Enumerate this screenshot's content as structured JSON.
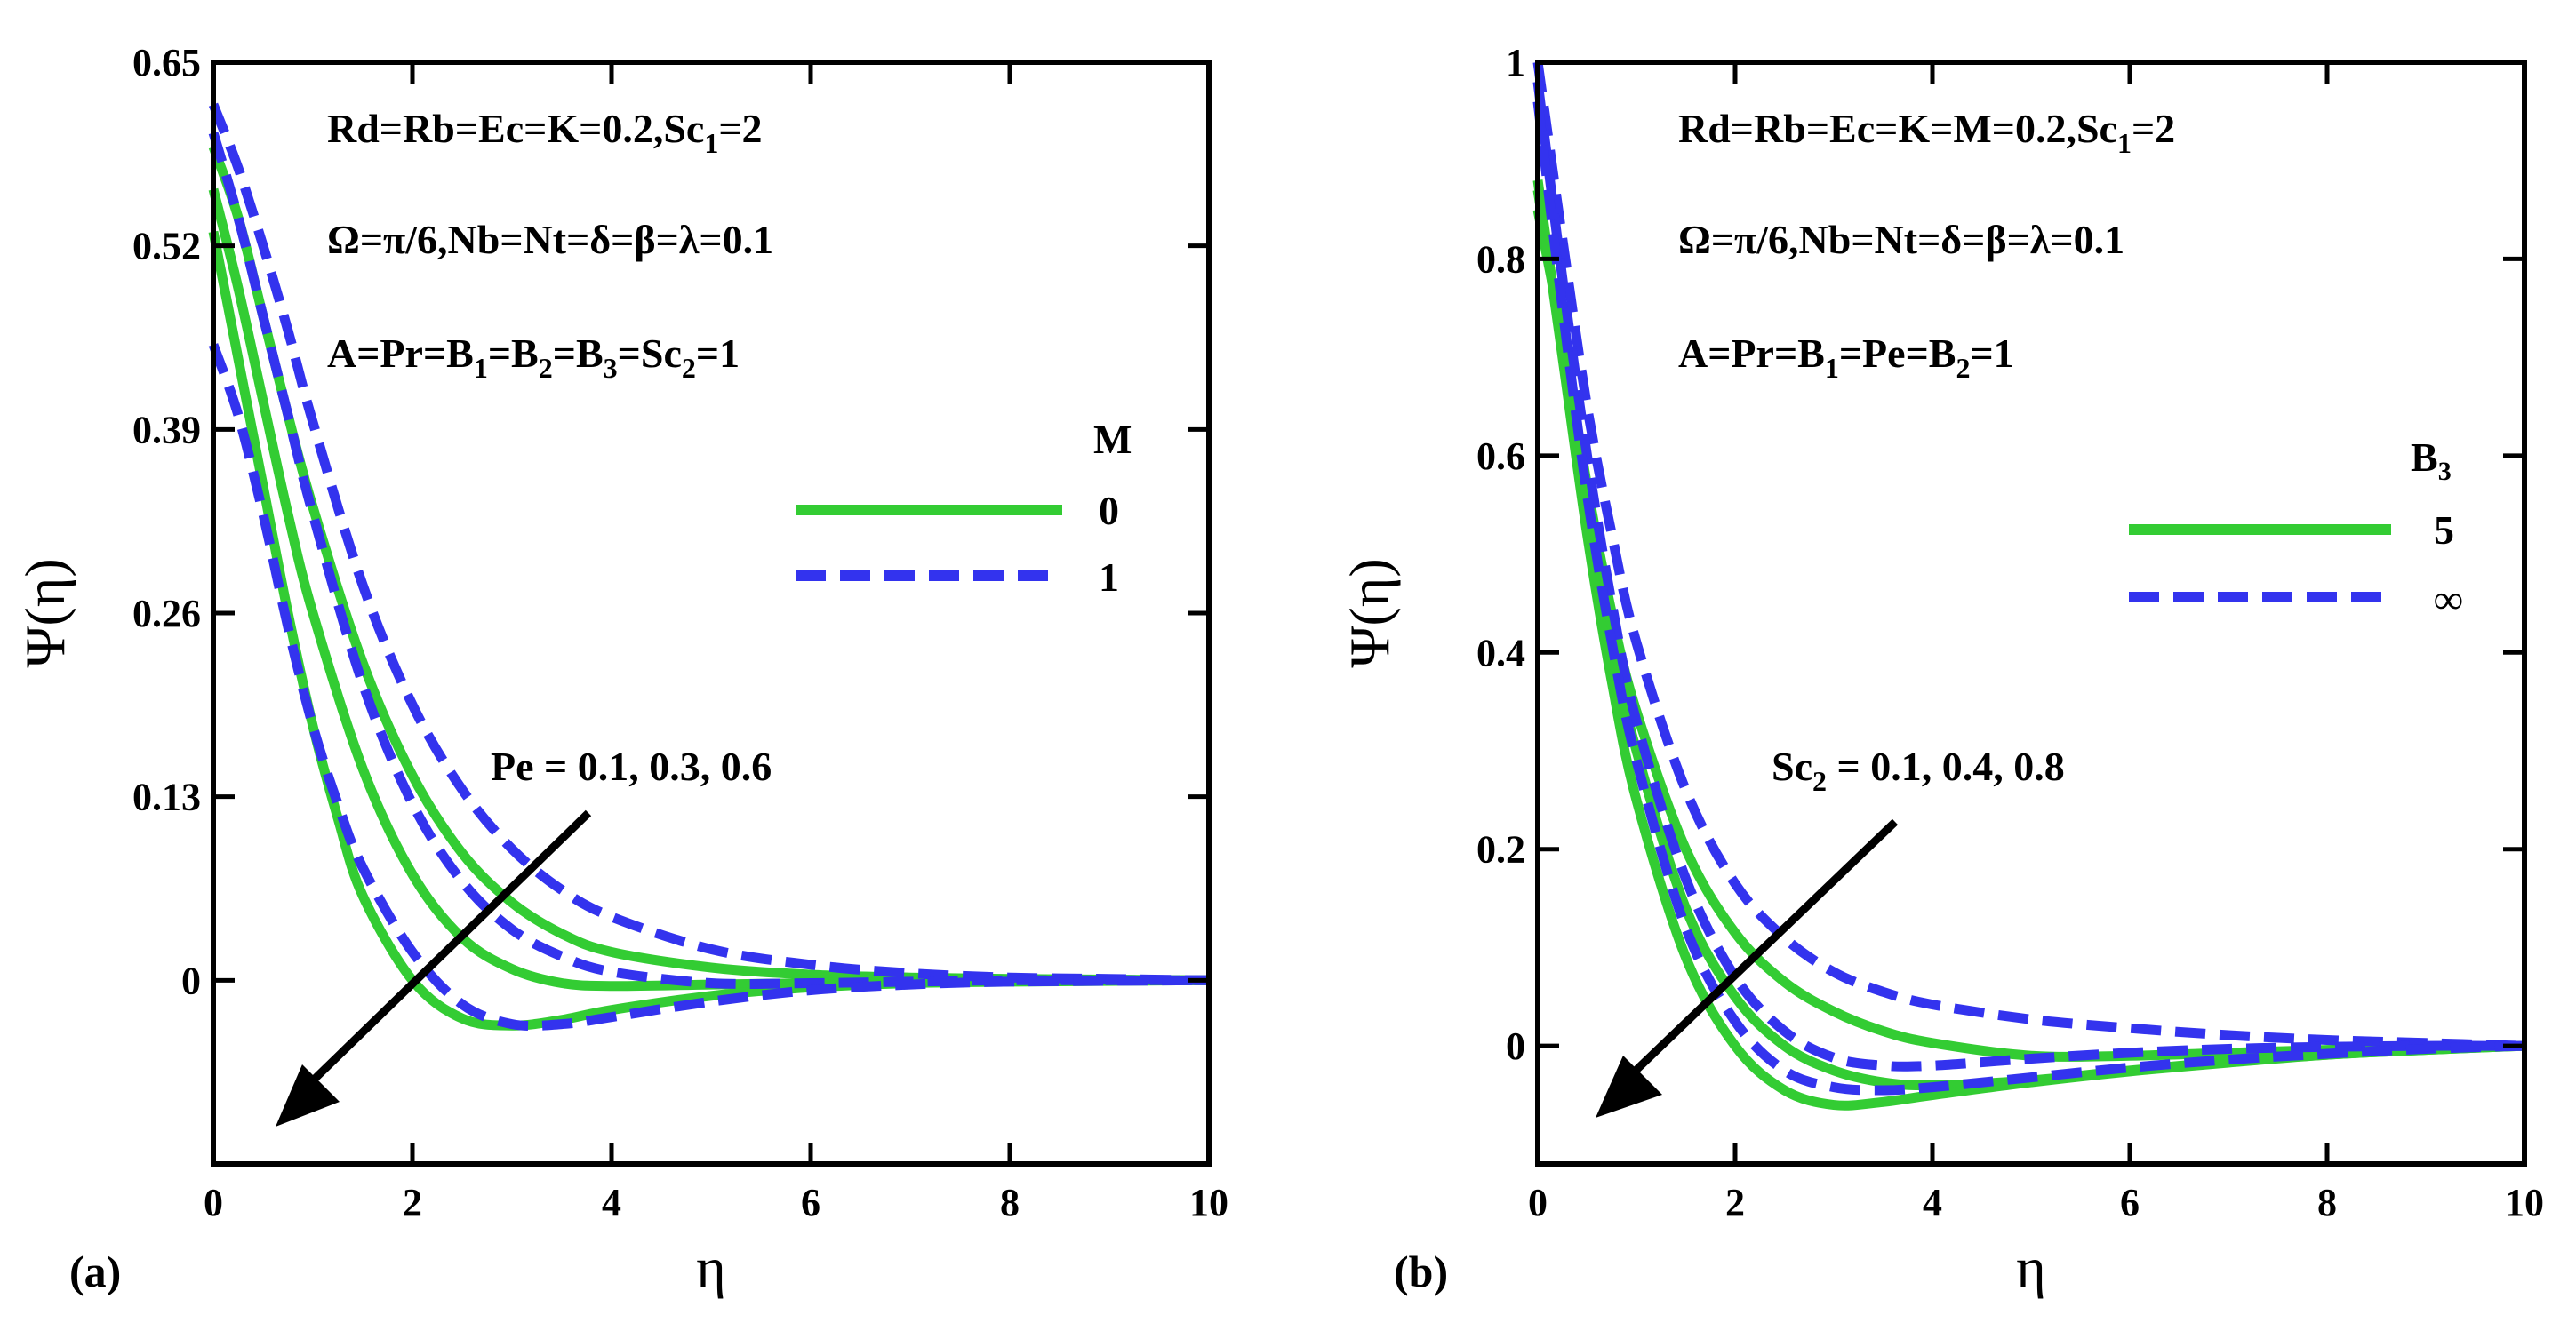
{
  "chart_data": [
    {
      "type": "line",
      "panel_label": "(a)",
      "xlabel": "η",
      "ylabel": "Ψ(η)",
      "xlim": [
        0,
        10
      ],
      "ylim": [
        -0.13,
        0.65
      ],
      "xticks": [
        "0",
        "2",
        "4",
        "6",
        "8",
        "10"
      ],
      "xtick_values": [
        0,
        2,
        4,
        6,
        8,
        10
      ],
      "yticks": [
        "0.65",
        "0.52",
        "0.39",
        "0.26",
        "0.13",
        "0"
      ],
      "ytick_values": [
        0.65,
        0.52,
        0.39,
        0.26,
        0.13,
        0
      ],
      "annotations": [
        {
          "text": "Rd=Rb=Ec=K=0.2,Sc",
          "sub": "1",
          "tail": "=2"
        },
        {
          "text": "Ω=π/6,Nb=Nt=δ=β=λ=0.1"
        },
        {
          "text": "A=Pr=B",
          "parts": [
            "1",
            "=B",
            "2",
            "=B",
            "3",
            "=Sc",
            "2",
            "=1"
          ]
        }
      ],
      "arrow_label": "Pe = 0.1, 0.3, 0.6",
      "legend": {
        "title": "M",
        "title_sub": "",
        "position": "right",
        "entries": [
          "0",
          "1"
        ]
      },
      "series": [
        {
          "name": "M=0, Pe=0.1",
          "style": "solid",
          "color": "#33cc33",
          "x": [
            0,
            0.25,
            0.5,
            0.75,
            1,
            1.5,
            2,
            2.5,
            3,
            3.5,
            4,
            5,
            6,
            7,
            8,
            9,
            10
          ],
          "y": [
            0.59,
            0.54,
            0.47,
            0.4,
            0.335,
            0.225,
            0.145,
            0.09,
            0.055,
            0.033,
            0.02,
            0.009,
            0.004,
            0.002,
            0.001,
            0.0005,
            0
          ]
        },
        {
          "name": "M=0, Pe=0.3",
          "style": "solid",
          "color": "#33cc33",
          "x": [
            0,
            0.25,
            0.5,
            0.75,
            1,
            1.5,
            2,
            2.5,
            3,
            3.5,
            4,
            5,
            6,
            7,
            8,
            9,
            10
          ],
          "y": [
            0.56,
            0.49,
            0.41,
            0.33,
            0.26,
            0.15,
            0.075,
            0.03,
            0.008,
            -0.002,
            -0.004,
            -0.003,
            -0.002,
            -0.001,
            0,
            0,
            0
          ]
        },
        {
          "name": "M=0, Pe=0.6",
          "style": "solid",
          "color": "#33cc33",
          "x": [
            0,
            0.25,
            0.5,
            0.75,
            1,
            1.25,
            1.5,
            2,
            2.5,
            3,
            3.5,
            4,
            5,
            6,
            7,
            8,
            10
          ],
          "y": [
            0.53,
            0.44,
            0.35,
            0.26,
            0.18,
            0.115,
            0.06,
            0.0,
            -0.027,
            -0.032,
            -0.028,
            -0.021,
            -0.011,
            -0.005,
            -0.002,
            -0.001,
            0
          ]
        },
        {
          "name": "M=1, Pe=0.1",
          "style": "dashed",
          "color": "#3333ee",
          "x": [
            0,
            0.25,
            0.5,
            0.75,
            1,
            1.5,
            2,
            2.5,
            3,
            3.5,
            4,
            5,
            6,
            7,
            8,
            9,
            10
          ],
          "y": [
            0.62,
            0.575,
            0.52,
            0.46,
            0.395,
            0.28,
            0.195,
            0.135,
            0.093,
            0.064,
            0.045,
            0.022,
            0.011,
            0.005,
            0.002,
            0.001,
            0
          ]
        },
        {
          "name": "M=1, Pe=0.3",
          "style": "dashed",
          "color": "#3333ee",
          "x": [
            0,
            0.25,
            0.5,
            0.75,
            1,
            1.5,
            2,
            2.5,
            3,
            3.5,
            4,
            5,
            6,
            7,
            8,
            9,
            10
          ],
          "y": [
            0.6,
            0.54,
            0.47,
            0.4,
            0.33,
            0.21,
            0.125,
            0.07,
            0.036,
            0.017,
            0.006,
            -0.002,
            -0.002,
            -0.001,
            0,
            0,
            0
          ]
        },
        {
          "name": "M=1, Pe=0.6",
          "style": "dashed",
          "color": "#3333ee",
          "x": [
            0,
            0.25,
            0.5,
            0.75,
            1,
            1.25,
            1.5,
            2,
            2.5,
            3,
            3.5,
            4,
            5,
            6,
            7,
            8,
            10
          ],
          "y": [
            0.45,
            0.4,
            0.33,
            0.25,
            0.18,
            0.125,
            0.08,
            0.02,
            -0.017,
            -0.031,
            -0.031,
            -0.026,
            -0.015,
            -0.007,
            -0.003,
            -0.001,
            0
          ]
        }
      ]
    },
    {
      "type": "line",
      "panel_label": "(b)",
      "xlabel": "η",
      "ylabel": "Ψ(η)",
      "xlim": [
        0,
        10
      ],
      "ylim": [
        -0.12,
        1.0
      ],
      "xticks": [
        "0",
        "2",
        "4",
        "6",
        "8",
        "10"
      ],
      "xtick_values": [
        0,
        2,
        4,
        6,
        8,
        10
      ],
      "yticks": [
        "1",
        "0.8",
        "0.6",
        "0.4",
        "0.2",
        "0"
      ],
      "ytick_values": [
        1,
        0.8,
        0.6,
        0.4,
        0.2,
        0
      ],
      "annotations": [
        {
          "text": "Rd=Rb=Ec=K=M=0.2,Sc",
          "sub": "1",
          "tail": "=2"
        },
        {
          "text": "Ω=π/6,Nb=Nt=δ=β=λ=0.1"
        },
        {
          "text": "A=Pr=B",
          "parts": [
            "1",
            "=Pe=B",
            "2",
            "=1"
          ]
        }
      ],
      "arrow_label": "Sc = 0.1, 0.4, 0.8",
      "arrow_label_parts": [
        "Sc",
        "2",
        " = 0.1, 0.4, 0.8"
      ],
      "legend": {
        "title": "B",
        "title_sub": "3",
        "position": "right",
        "entries": [
          "5",
          "∞"
        ]
      },
      "series": [
        {
          "name": "B3=5, Sc2=0.1",
          "style": "solid",
          "color": "#33cc33",
          "x": [
            0,
            0.25,
            0.5,
            0.75,
            1,
            1.5,
            2,
            2.5,
            3,
            3.5,
            4,
            5,
            6,
            7,
            8,
            9,
            10
          ],
          "y": [
            0.85,
            0.72,
            0.57,
            0.44,
            0.34,
            0.2,
            0.115,
            0.065,
            0.035,
            0.015,
            0.003,
            -0.01,
            -0.01,
            -0.007,
            -0.004,
            -0.002,
            0
          ]
        },
        {
          "name": "B3=5, Sc2=0.4",
          "style": "solid",
          "color": "#33cc33",
          "x": [
            0,
            0.25,
            0.5,
            0.75,
            1,
            1.5,
            2,
            2.5,
            3,
            3.5,
            4,
            5,
            6,
            7,
            8,
            9,
            10
          ],
          "y": [
            0.87,
            0.71,
            0.55,
            0.41,
            0.3,
            0.14,
            0.05,
            0.0,
            -0.025,
            -0.037,
            -0.04,
            -0.035,
            -0.025,
            -0.016,
            -0.009,
            -0.004,
            0
          ]
        },
        {
          "name": "B3=5, Sc2=0.8",
          "style": "solid",
          "color": "#33cc33",
          "x": [
            0,
            0.25,
            0.5,
            0.75,
            1,
            1.5,
            2,
            2.5,
            3,
            3.5,
            4,
            5,
            6,
            7,
            8,
            9,
            10
          ],
          "y": [
            0.88,
            0.7,
            0.52,
            0.37,
            0.25,
            0.09,
            0.0,
            -0.045,
            -0.06,
            -0.057,
            -0.05,
            -0.037,
            -0.026,
            -0.017,
            -0.009,
            -0.004,
            0
          ]
        },
        {
          "name": "B3=inf, Sc2=0.1",
          "style": "dashed",
          "color": "#3333ee",
          "x": [
            0,
            0.25,
            0.5,
            0.75,
            1,
            1.5,
            2,
            2.5,
            3,
            3.5,
            4,
            5,
            6,
            7,
            8,
            9,
            10
          ],
          "y": [
            1.0,
            0.82,
            0.65,
            0.52,
            0.41,
            0.26,
            0.165,
            0.11,
            0.075,
            0.055,
            0.042,
            0.027,
            0.018,
            0.011,
            0.006,
            0.003,
            0
          ]
        },
        {
          "name": "B3=inf, Sc2=0.4",
          "style": "dashed",
          "color": "#3333ee",
          "x": [
            0,
            0.25,
            0.5,
            0.75,
            1,
            1.5,
            2,
            2.5,
            3,
            3.5,
            4,
            5,
            6,
            7,
            8,
            9,
            10
          ],
          "y": [
            0.98,
            0.78,
            0.6,
            0.45,
            0.33,
            0.17,
            0.07,
            0.015,
            -0.012,
            -0.02,
            -0.02,
            -0.013,
            -0.007,
            -0.003,
            -0.001,
            0,
            0
          ]
        },
        {
          "name": "B3=inf, Sc2=0.8",
          "style": "dashed",
          "color": "#3333ee",
          "x": [
            0,
            0.25,
            0.5,
            0.75,
            1,
            1.5,
            2,
            2.5,
            3,
            3.5,
            4,
            5,
            6,
            7,
            8,
            9,
            10
          ],
          "y": [
            0.96,
            0.75,
            0.56,
            0.41,
            0.29,
            0.12,
            0.025,
            -0.025,
            -0.042,
            -0.045,
            -0.042,
            -0.032,
            -0.022,
            -0.014,
            -0.008,
            -0.003,
            0
          ]
        }
      ]
    }
  ]
}
